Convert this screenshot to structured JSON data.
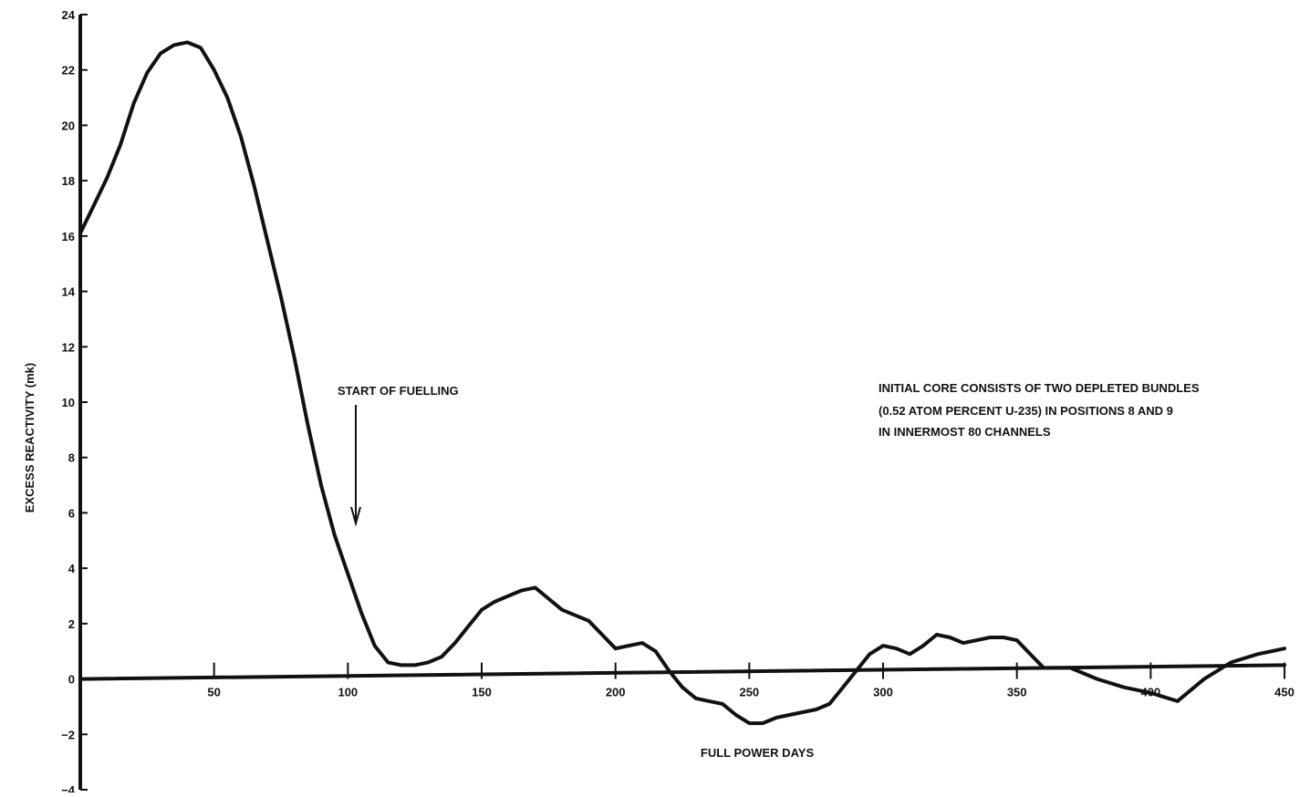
{
  "chart_data": {
    "type": "line",
    "title": "",
    "xlabel": "FULL POWER DAYS",
    "ylabel": "EXCESS REACTIVITY (mk)",
    "xlim": [
      0,
      450
    ],
    "ylim": [
      -4,
      24
    ],
    "grid": false,
    "x_ticks": [
      50,
      100,
      150,
      200,
      250,
      300,
      350,
      400,
      450
    ],
    "y_ticks": [
      -4,
      -2,
      0,
      2,
      4,
      6,
      8,
      10,
      12,
      14,
      16,
      18,
      20,
      22,
      24
    ],
    "series": [
      {
        "x": [
          0,
          5,
          10,
          15,
          20,
          25,
          30,
          35,
          40,
          45,
          50,
          55,
          60,
          65,
          70,
          75,
          80,
          85,
          90,
          95,
          100,
          105,
          110,
          115,
          120,
          125,
          130,
          135,
          140,
          145,
          150,
          155,
          160,
          165,
          170,
          175,
          180,
          185,
          190,
          195,
          200,
          205,
          210,
          215,
          220,
          225,
          230,
          235,
          240,
          245,
          250,
          255,
          260,
          265,
          270,
          275,
          280,
          285,
          290,
          295,
          300,
          305,
          310,
          315,
          320,
          325,
          330,
          335,
          340,
          345,
          350,
          355,
          360,
          370,
          380,
          390,
          400,
          410,
          420,
          430,
          440,
          450
        ],
        "values": [
          16.1,
          17.1,
          18.1,
          19.3,
          20.8,
          21.9,
          22.6,
          22.9,
          23.0,
          22.8,
          22.0,
          21.0,
          19.6,
          17.8,
          15.8,
          13.8,
          11.6,
          9.2,
          7.0,
          5.2,
          3.8,
          2.4,
          1.2,
          0.6,
          0.5,
          0.5,
          0.6,
          0.8,
          1.3,
          1.9,
          2.5,
          2.8,
          3.0,
          3.2,
          3.3,
          2.9,
          2.5,
          2.3,
          2.1,
          1.6,
          1.1,
          1.2,
          1.3,
          1.0,
          0.3,
          -0.3,
          -0.7,
          -0.8,
          -0.9,
          -1.3,
          -1.6,
          -1.6,
          -1.4,
          -1.3,
          -1.2,
          -1.1,
          -0.9,
          -0.3,
          0.3,
          0.9,
          1.2,
          1.1,
          0.9,
          1.2,
          1.6,
          1.5,
          1.3,
          1.4,
          1.5,
          1.5,
          1.4,
          0.9,
          0.4,
          0.4,
          0.0,
          -0.3,
          -0.5,
          -0.8,
          0.0,
          0.6,
          0.9,
          1.1
        ]
      },
      {
        "x": [
          0,
          450
        ],
        "values": [
          0.0,
          0.5
        ]
      }
    ],
    "annotations": [
      {
        "text": "START OF FUELLING",
        "x": 100,
        "y": 5.5
      },
      {
        "text": "INITIAL CORE CONSISTS OF TWO DEPLETED BUNDLES"
      },
      {
        "text": "(0.52 ATOM PERCENT U-235) IN POSITIONS 8 AND 9"
      },
      {
        "text": "IN INNERMOST 80 CHANNELS"
      }
    ]
  },
  "colors": {
    "ink": "#111111",
    "background": "#ffffff"
  }
}
